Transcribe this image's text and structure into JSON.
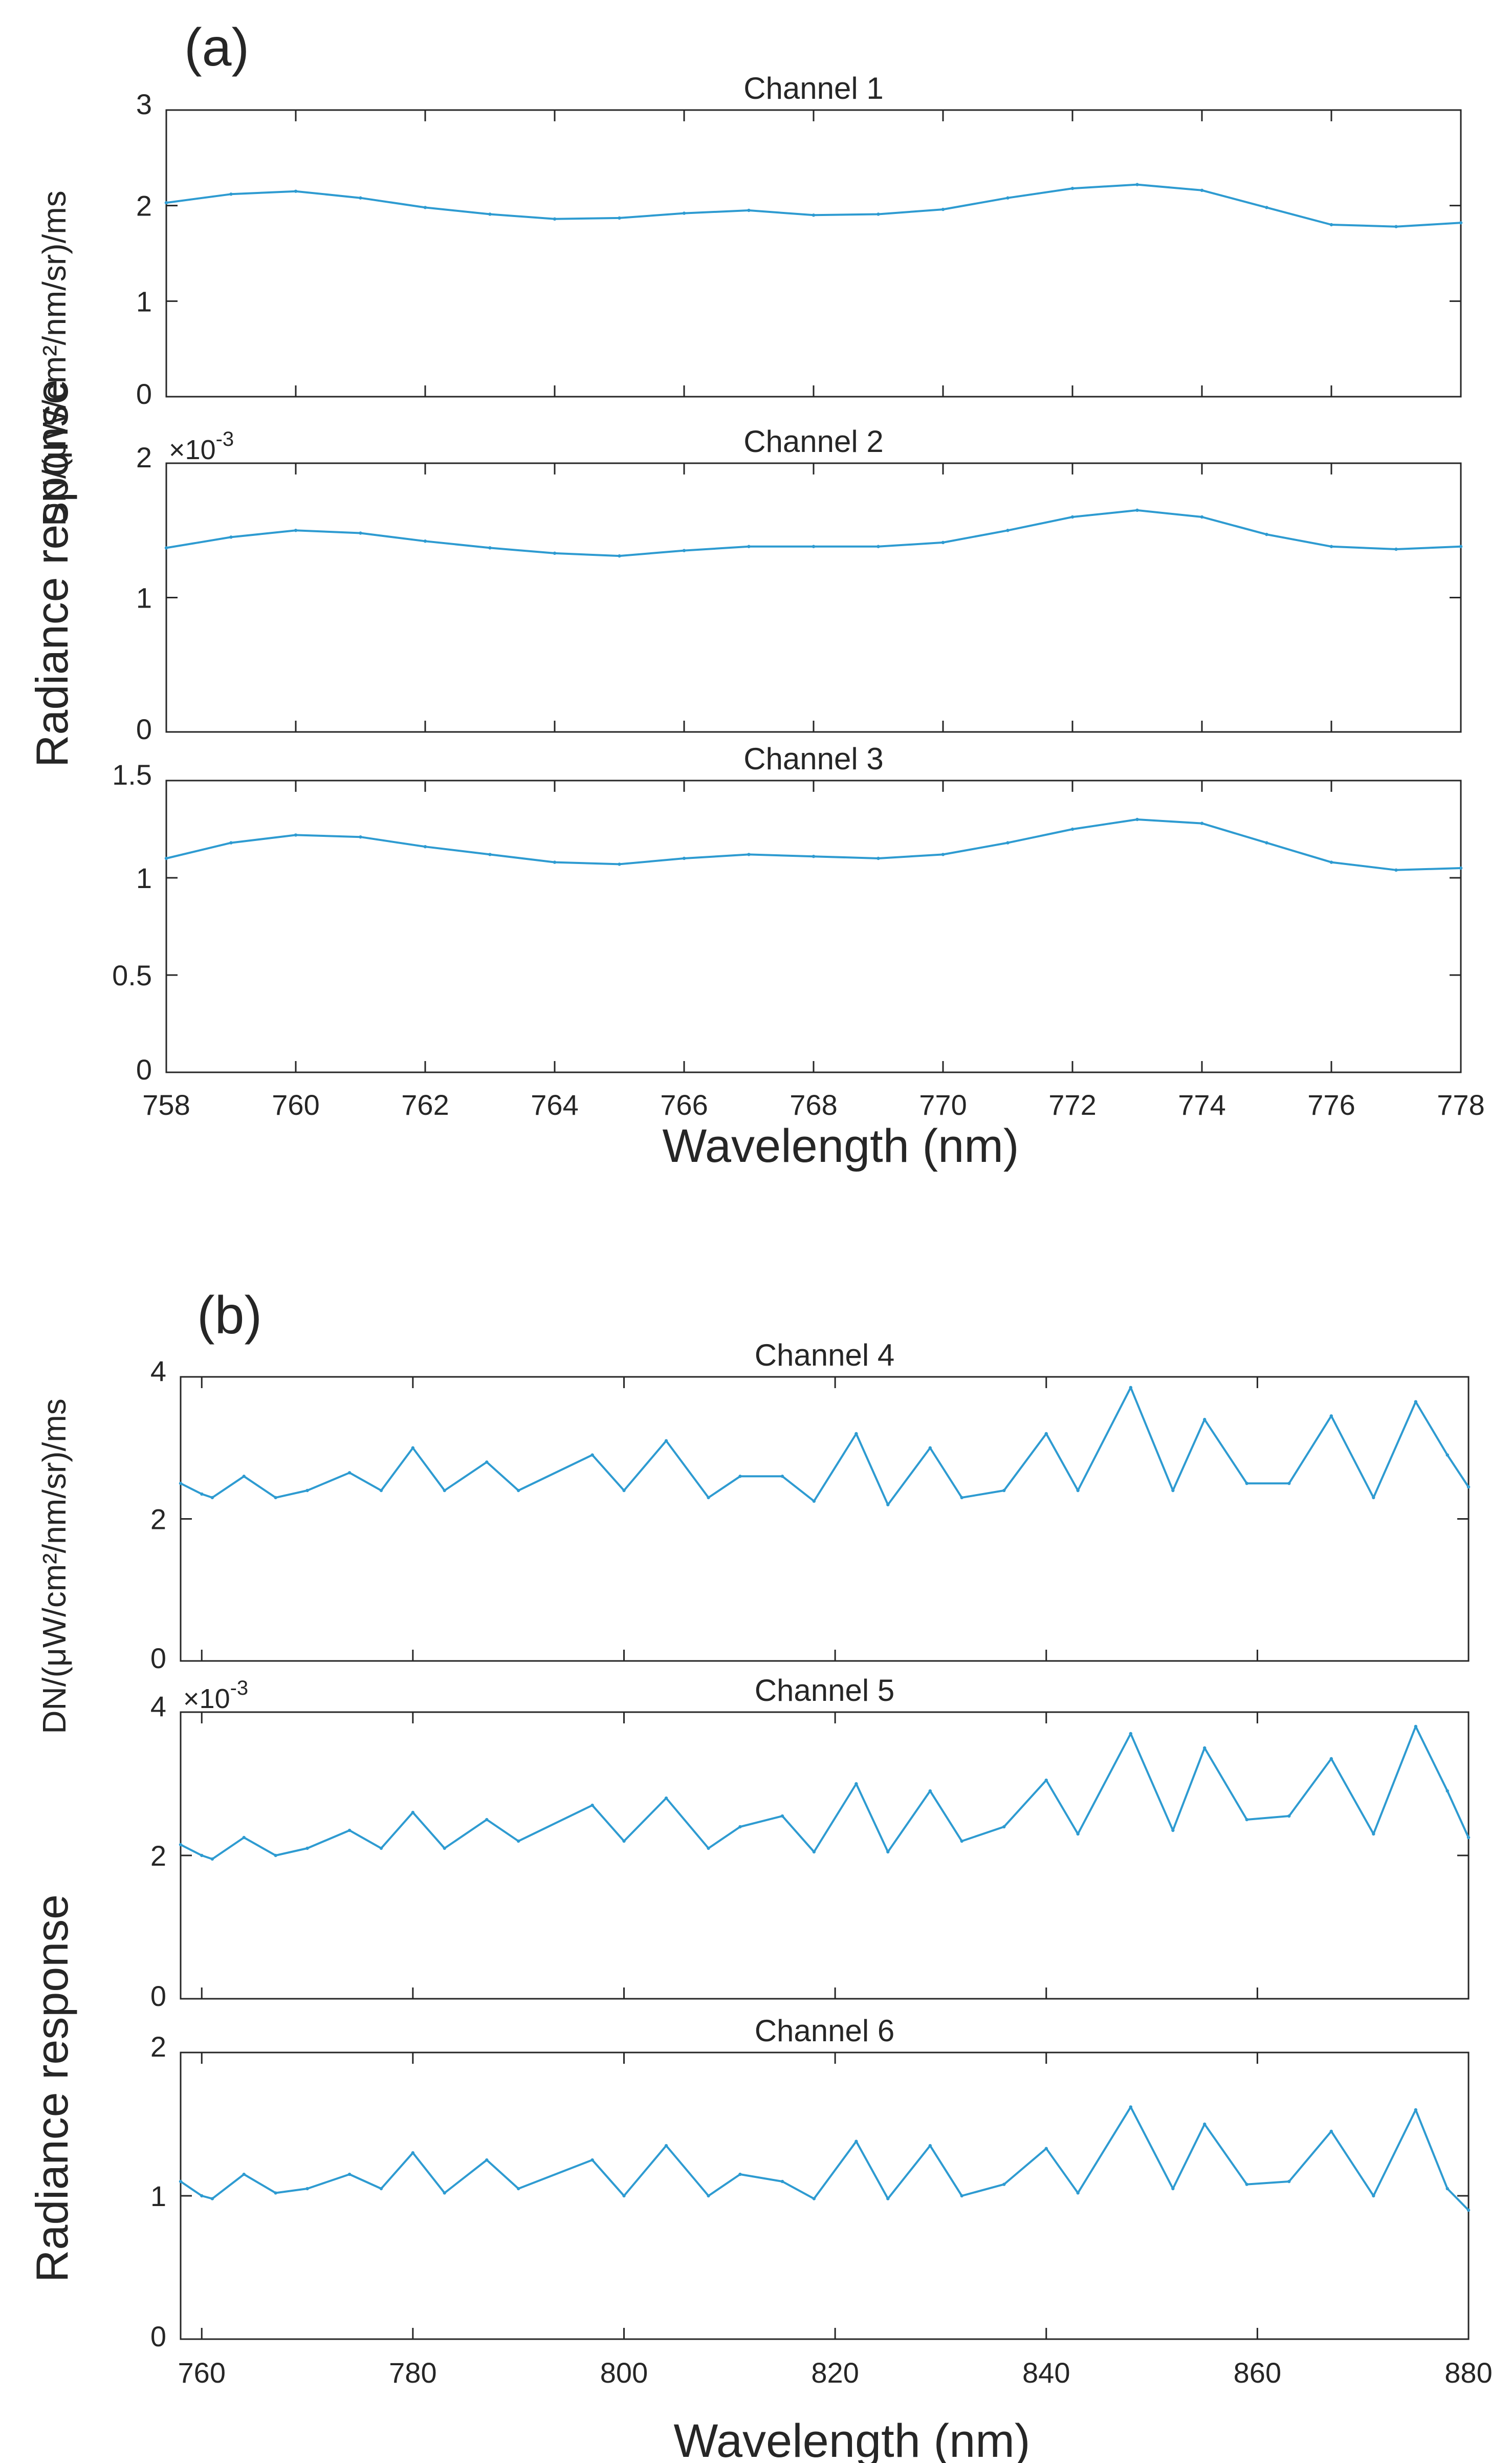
{
  "figure": {
    "line_color": "#2e9bd1",
    "axis_color": "#262626"
  },
  "chart_data": [
    {
      "panel_label": "(a)",
      "type": "line",
      "xlabel": "Wavelength (nm)",
      "ylabel_left": "Radiance response",
      "ylabel_right": "DN/(μW/cm²/nm/sr)/ms",
      "xlim": [
        758,
        778
      ],
      "xticks": [
        758,
        760,
        762,
        764,
        766,
        768,
        770,
        772,
        774,
        776,
        778
      ],
      "subplots": [
        {
          "title": "Channel 1",
          "ylim": [
            0,
            3
          ],
          "yticks": [
            0,
            1,
            2,
            3
          ],
          "multiplier": "",
          "series": {
            "name": "Channel 1",
            "x": [
              758,
              759,
              760,
              761,
              762,
              763,
              764,
              765,
              766,
              767,
              768,
              769,
              770,
              771,
              772,
              773,
              774,
              775,
              776,
              777,
              778
            ],
            "y": [
              2.03,
              2.12,
              2.15,
              2.08,
              1.98,
              1.91,
              1.86,
              1.87,
              1.92,
              1.95,
              1.9,
              1.91,
              1.96,
              2.08,
              2.18,
              2.22,
              2.16,
              1.98,
              1.8,
              1.78,
              1.82
            ]
          }
        },
        {
          "title": "Channel 2",
          "ylim": [
            0,
            2
          ],
          "yticks": [
            0,
            1,
            2
          ],
          "multiplier": "×10",
          "multiplier_exp": "-3",
          "series": {
            "name": "Channel 2",
            "x": [
              758,
              759,
              760,
              761,
              762,
              763,
              764,
              765,
              766,
              767,
              768,
              769,
              770,
              771,
              772,
              773,
              774,
              775,
              776,
              777,
              778
            ],
            "y": [
              1.37,
              1.45,
              1.5,
              1.48,
              1.42,
              1.37,
              1.33,
              1.31,
              1.35,
              1.38,
              1.38,
              1.38,
              1.41,
              1.5,
              1.6,
              1.65,
              1.6,
              1.47,
              1.38,
              1.36,
              1.38
            ]
          }
        },
        {
          "title": "Channel 3",
          "ylim": [
            0,
            1.5
          ],
          "yticks": [
            0,
            0.5,
            1,
            1.5
          ],
          "multiplier": "",
          "series": {
            "name": "Channel 3",
            "x": [
              758,
              759,
              760,
              761,
              762,
              763,
              764,
              765,
              766,
              767,
              768,
              769,
              770,
              771,
              772,
              773,
              774,
              775,
              776,
              777,
              778
            ],
            "y": [
              1.1,
              1.18,
              1.22,
              1.21,
              1.16,
              1.12,
              1.08,
              1.07,
              1.1,
              1.12,
              1.11,
              1.1,
              1.12,
              1.18,
              1.25,
              1.3,
              1.28,
              1.18,
              1.08,
              1.04,
              1.05
            ]
          }
        }
      ]
    },
    {
      "panel_label": "(b)",
      "type": "line",
      "xlabel": "Wavelength (nm)",
      "ylabel_left": "Radiance response",
      "ylabel_right": "DN/(μW/cm²/nm/sr)/ms",
      "xlim": [
        758,
        880
      ],
      "xticks": [
        760,
        780,
        800,
        820,
        840,
        860,
        880
      ],
      "subplots": [
        {
          "title": "Channel 4",
          "ylim": [
            0,
            4
          ],
          "yticks": [
            0,
            2,
            4
          ],
          "multiplier": "",
          "series": {
            "name": "Channel 4",
            "x": [
              758,
              760,
              761,
              764,
              767,
              770,
              774,
              777,
              780,
              783,
              787,
              790,
              797,
              800,
              804,
              808,
              811,
              815,
              818,
              822,
              825,
              829,
              832,
              836,
              840,
              843,
              848,
              852,
              855,
              859,
              863,
              867,
              871,
              875,
              878,
              880
            ],
            "y": [
              2.5,
              2.35,
              2.3,
              2.6,
              2.3,
              2.4,
              2.65,
              2.4,
              3.0,
              2.4,
              2.8,
              2.4,
              2.9,
              2.4,
              3.1,
              2.3,
              2.6,
              2.6,
              2.25,
              3.2,
              2.2,
              3.0,
              2.3,
              2.4,
              3.2,
              2.4,
              3.85,
              2.4,
              3.4,
              2.5,
              2.5,
              3.45,
              2.3,
              3.65,
              2.9,
              2.45
            ]
          }
        },
        {
          "title": "Channel 5",
          "ylim": [
            0,
            4
          ],
          "yticks": [
            0,
            2,
            4
          ],
          "multiplier": "×10",
          "multiplier_exp": "-3",
          "series": {
            "name": "Channel 5",
            "x": [
              758,
              760,
              761,
              764,
              767,
              770,
              774,
              777,
              780,
              783,
              787,
              790,
              797,
              800,
              804,
              808,
              811,
              815,
              818,
              822,
              825,
              829,
              832,
              836,
              840,
              843,
              848,
              852,
              855,
              859,
              863,
              867,
              871,
              875,
              878,
              880
            ],
            "y": [
              2.15,
              2.0,
              1.95,
              2.25,
              2.0,
              2.1,
              2.35,
              2.1,
              2.6,
              2.1,
              2.5,
              2.2,
              2.7,
              2.2,
              2.8,
              2.1,
              2.4,
              2.55,
              2.05,
              3.0,
              2.05,
              2.9,
              2.2,
              2.4,
              3.05,
              2.3,
              3.7,
              2.35,
              3.5,
              2.5,
              2.55,
              3.35,
              2.3,
              3.8,
              2.9,
              2.25
            ]
          }
        },
        {
          "title": "Channel 6",
          "ylim": [
            0,
            2
          ],
          "yticks": [
            0,
            1,
            2
          ],
          "multiplier": "",
          "series": {
            "name": "Channel 6",
            "x": [
              758,
              760,
              761,
              764,
              767,
              770,
              774,
              777,
              780,
              783,
              787,
              790,
              797,
              800,
              804,
              808,
              811,
              815,
              818,
              822,
              825,
              829,
              832,
              836,
              840,
              843,
              848,
              852,
              855,
              859,
              863,
              867,
              871,
              875,
              878,
              880
            ],
            "y": [
              1.1,
              1.0,
              0.98,
              1.15,
              1.02,
              1.05,
              1.15,
              1.05,
              1.3,
              1.02,
              1.25,
              1.05,
              1.25,
              1.0,
              1.35,
              1.0,
              1.15,
              1.1,
              0.98,
              1.38,
              0.98,
              1.35,
              1.0,
              1.08,
              1.33,
              1.02,
              1.62,
              1.05,
              1.5,
              1.08,
              1.1,
              1.45,
              1.0,
              1.6,
              1.05,
              0.9
            ]
          }
        }
      ]
    }
  ]
}
